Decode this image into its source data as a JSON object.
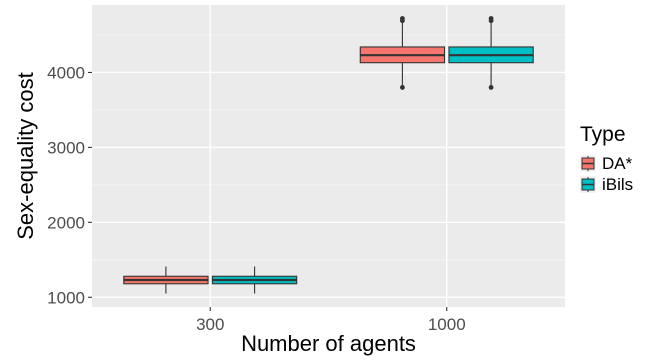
{
  "chart_data": {
    "type": "boxplot",
    "title": "",
    "xlabel": "Number of agents",
    "ylabel": "Sex-equality cost",
    "categories": [
      "300",
      "1000"
    ],
    "ylim": [
      870,
      4900
    ],
    "yticks": [
      1000,
      2000,
      3000,
      4000
    ],
    "grid": true,
    "legend": {
      "title": "Type",
      "position": "right"
    },
    "series": [
      {
        "name": "DA*",
        "color": "#F8766D",
        "boxes": [
          {
            "category": "300",
            "min": 1050,
            "q1": 1180,
            "median": 1230,
            "q3": 1280,
            "max": 1410,
            "outliers": []
          },
          {
            "category": "1000",
            "min": 3800,
            "q1": 4130,
            "median": 4230,
            "q3": 4340,
            "max": 4680,
            "outliers": [
              3800,
              4690,
              4720
            ]
          }
        ]
      },
      {
        "name": "iBils",
        "color": "#00BFC4",
        "boxes": [
          {
            "category": "300",
            "min": 1050,
            "q1": 1180,
            "median": 1230,
            "q3": 1280,
            "max": 1410,
            "outliers": []
          },
          {
            "category": "1000",
            "min": 3800,
            "q1": 4130,
            "median": 4230,
            "q3": 4340,
            "max": 4680,
            "outliers": [
              3800,
              4690,
              4720
            ]
          }
        ]
      }
    ]
  }
}
